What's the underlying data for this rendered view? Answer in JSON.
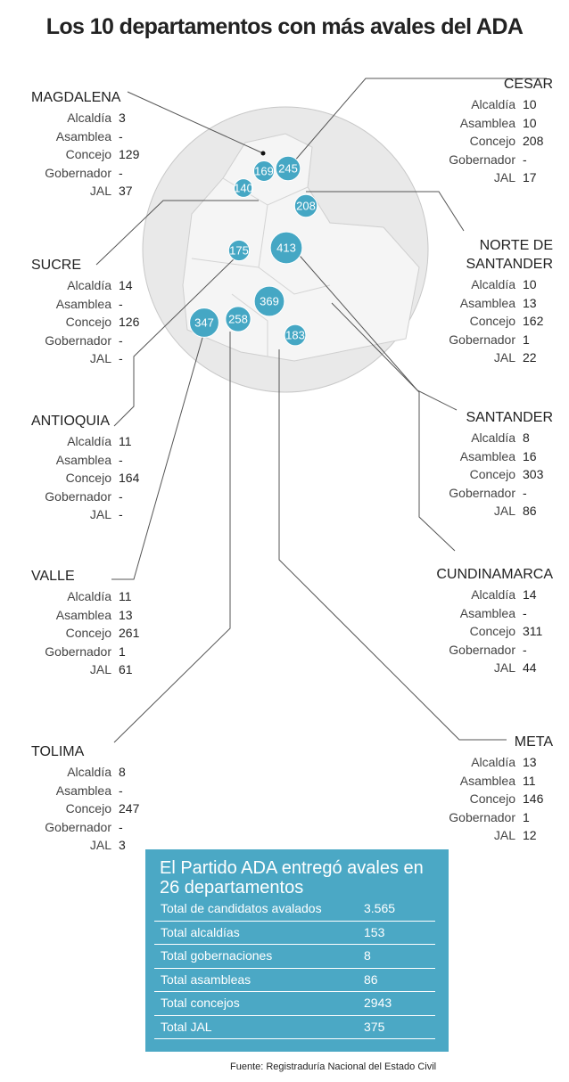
{
  "title": "Los 10 departamentos con más avales del ADA",
  "map_bubbles": [
    169,
    245,
    140,
    208,
    175,
    413,
    369,
    347,
    258,
    183
  ],
  "left_column": [
    {
      "name": "MAGDALENA",
      "rows": [
        {
          "label": "Alcaldía",
          "value": 3
        },
        {
          "label": "Asamblea",
          "value": "-"
        },
        {
          "label": "Concejo",
          "value": 129
        },
        {
          "label": "Gobernador",
          "value": "-"
        },
        {
          "label": "JAL",
          "value": 37
        }
      ]
    },
    {
      "name": "SUCRE",
      "rows": [
        {
          "label": "Alcaldía",
          "value": 14
        },
        {
          "label": "Asamblea",
          "value": "-"
        },
        {
          "label": "Concejo",
          "value": 126
        },
        {
          "label": "Gobernador",
          "value": "-"
        },
        {
          "label": "JAL",
          "value": "-"
        }
      ]
    },
    {
      "name": "ANTIOQUIA",
      "rows": [
        {
          "label": "Alcaldía",
          "value": 11
        },
        {
          "label": "Asamblea",
          "value": "-"
        },
        {
          "label": "Concejo",
          "value": 164
        },
        {
          "label": "Gobernador",
          "value": "-"
        },
        {
          "label": "JAL",
          "value": "-"
        }
      ]
    },
    {
      "name": "VALLE",
      "rows": [
        {
          "label": "Alcaldía",
          "value": 11
        },
        {
          "label": "Asamblea",
          "value": 13
        },
        {
          "label": "Concejo",
          "value": 261
        },
        {
          "label": "Gobernador",
          "value": 1
        },
        {
          "label": "JAL",
          "value": 61
        }
      ]
    },
    {
      "name": "TOLIMA",
      "rows": [
        {
          "label": "Alcaldía",
          "value": 8
        },
        {
          "label": "Asamblea",
          "value": "-"
        },
        {
          "label": "Concejo",
          "value": 247
        },
        {
          "label": "Gobernador",
          "value": "-"
        },
        {
          "label": "JAL",
          "value": 3
        }
      ]
    }
  ],
  "right_column": [
    {
      "name": "CESAR",
      "rows": [
        {
          "label": "Alcaldía",
          "value": 10
        },
        {
          "label": "Asamblea",
          "value": 10
        },
        {
          "label": "Concejo",
          "value": 208
        },
        {
          "label": "Gobernador",
          "value": "-"
        },
        {
          "label": "JAL",
          "value": 17
        }
      ]
    },
    {
      "name": "NORTE DE\nSANTANDER",
      "rows": [
        {
          "label": "Alcaldía",
          "value": 10
        },
        {
          "label": "Asamblea",
          "value": 13
        },
        {
          "label": "Concejo",
          "value": 162
        },
        {
          "label": "Gobernador",
          "value": 1
        },
        {
          "label": "JAL",
          "value": 22
        }
      ]
    },
    {
      "name": "SANTANDER",
      "rows": [
        {
          "label": "Alcaldía",
          "value": 8
        },
        {
          "label": "Asamblea",
          "value": 16
        },
        {
          "label": "Concejo",
          "value": 303
        },
        {
          "label": "Gobernador",
          "value": "-"
        },
        {
          "label": "JAL",
          "value": 86
        }
      ]
    },
    {
      "name": "CUNDINAMARCA",
      "rows": [
        {
          "label": "Alcaldía",
          "value": 14
        },
        {
          "label": "Asamblea",
          "value": "-"
        },
        {
          "label": "Concejo",
          "value": 311
        },
        {
          "label": "Gobernador",
          "value": "-"
        },
        {
          "label": "JAL",
          "value": 44
        }
      ]
    },
    {
      "name": "META",
      "rows": [
        {
          "label": "Alcaldía",
          "value": 13
        },
        {
          "label": "Asamblea",
          "value": 11
        },
        {
          "label": "Concejo",
          "value": 146
        },
        {
          "label": "Gobernador",
          "value": 1
        },
        {
          "label": "JAL",
          "value": 12
        }
      ]
    }
  ],
  "summary": {
    "title": "El Partido ADA entregó avales en 26 departamentos",
    "rows": [
      {
        "label": "Total de candidatos avalados",
        "value": "3.565"
      },
      {
        "label": "Total alcaldías",
        "value": "153"
      },
      {
        "label": "Total gobernaciones",
        "value": "8"
      },
      {
        "label": "Total asambleas",
        "value": "86"
      },
      {
        "label": "Total concejos",
        "value": "2943"
      },
      {
        "label": "Total JAL",
        "value": "375"
      }
    ]
  },
  "source": "Fuente: Registraduría Nacional del Estado Civil"
}
